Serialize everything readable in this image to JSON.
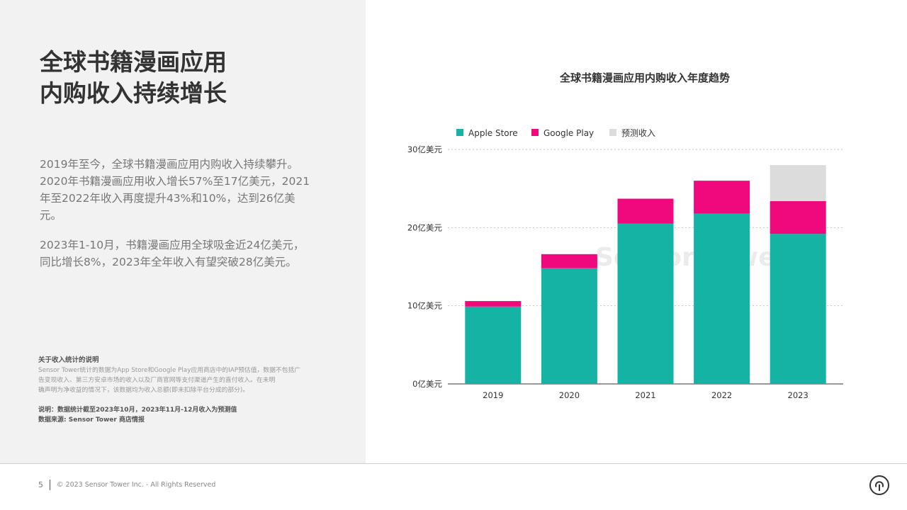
{
  "left": {
    "headline": [
      "全球书籍漫画应用",
      "内购收入持续增长"
    ],
    "paragraph1": [
      "2019年至今，全球书籍漫画应用内购收入持续攀升。",
      "2020年书籍漫画应用收入增长57%至17亿美元，2021",
      "年至2022年收入再度提升43%和10%，达到26亿美",
      "元。"
    ],
    "paragraph2": [
      "2023年1-10月，书籍漫画应用全球吸金近24亿美元，",
      "同比增长8%，2023年全年收入有望突破28亿美元。"
    ],
    "note_title": "关于收入统计的说明",
    "note_body": [
      "Sensor Tower统计的数据为App Store和Google Play应用商店中的IAP预估值，数据不包括广",
      "告变现收入、第三方安卓市场的收入以及厂商官网等支付渠道产生的直付收入。在未明",
      "确声明为净收益的情况下，该数据均为收入总额(即未扣除平台分成的部分)。"
    ],
    "note_explain": "说明：数据统计截至2023年10月，2023年11月-12月收入为预测值",
    "note_source": "数据来源: Sensor Tower 商店情报"
  },
  "footer": {
    "page_number": "5",
    "copyright": "© 2023 Sensor Tower Inc. - All Rights Reserved"
  },
  "watermark": "Sensor Tower",
  "chart_data": {
    "type": "bar",
    "stacked": true,
    "title": "全球书籍漫画应用内购收入年度趋势",
    "categories": [
      "2019",
      "2020",
      "2021",
      "2022",
      "2023"
    ],
    "series": [
      {
        "name": "Apple Store",
        "color": "#14b3a3",
        "values": [
          9.9,
          14.8,
          20.5,
          21.8,
          19.2
        ]
      },
      {
        "name": "Google Play",
        "color": "#f0097d",
        "values": [
          0.7,
          1.8,
          3.2,
          4.2,
          4.2
        ]
      },
      {
        "name": "预测收入",
        "color": "#dcdcdc",
        "values": [
          0,
          0,
          0,
          0,
          4.6
        ]
      }
    ],
    "ylim": [
      0,
      30
    ],
    "yticks": [
      0,
      10,
      20,
      30
    ],
    "ytick_labels": [
      "0亿美元",
      "10亿美元",
      "20亿美元",
      "30亿美元"
    ],
    "grid": true,
    "legend_position": "top-left"
  }
}
